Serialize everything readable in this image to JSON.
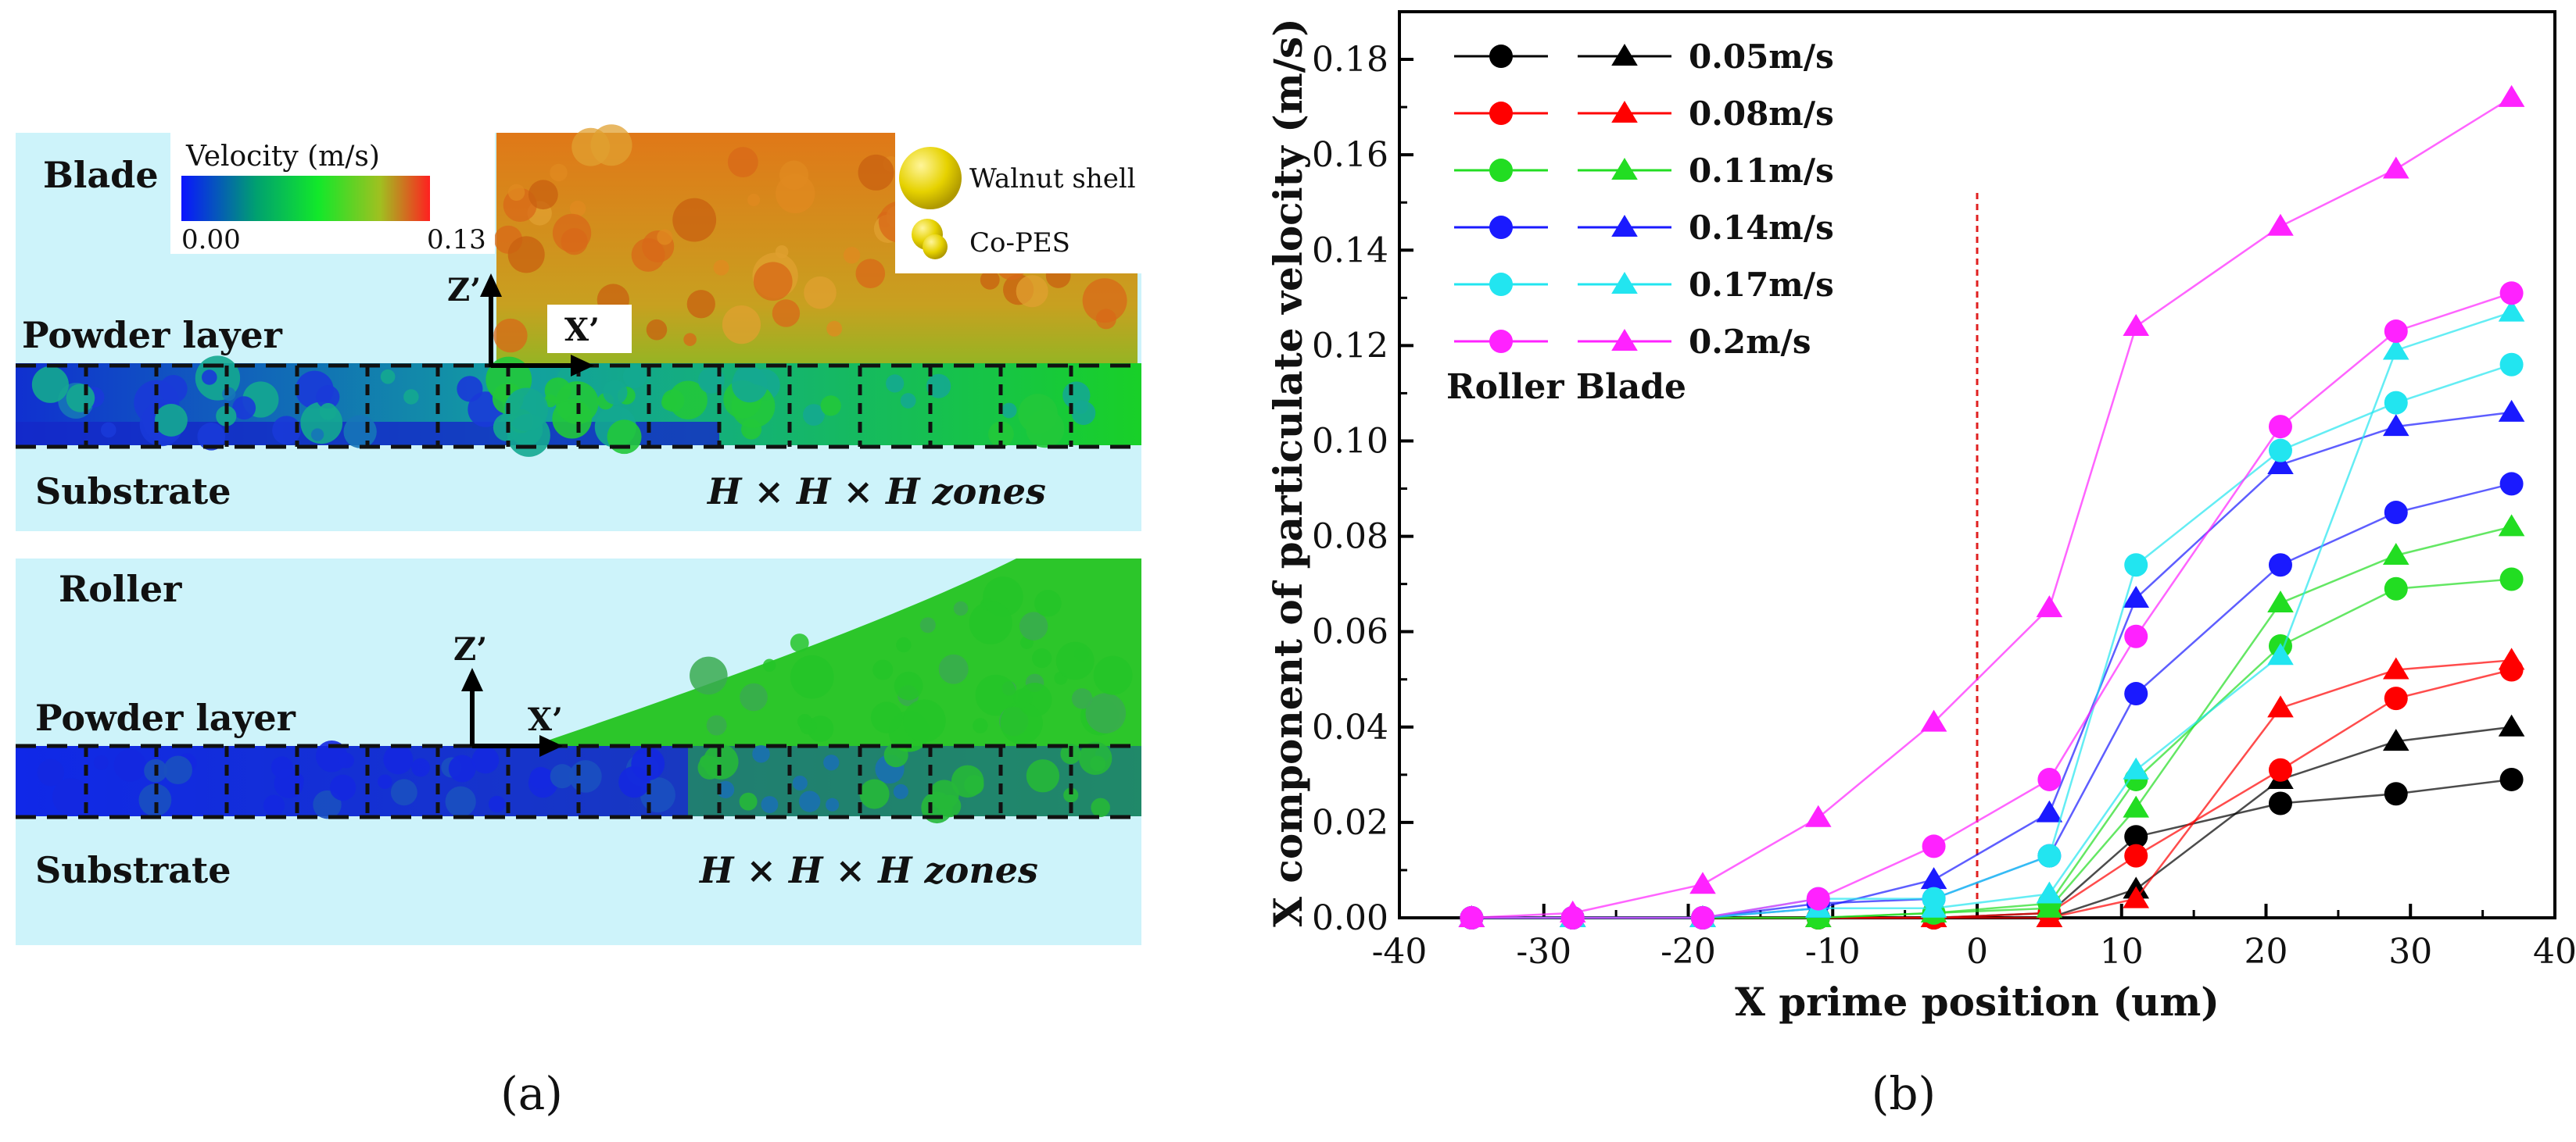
{
  "panel_a": {
    "label": "(a)",
    "legend": {
      "title": "Velocity (m/s)",
      "min_label": "0.00",
      "max_label": "0.13",
      "colors": [
        "#0a14ff",
        "#00a070",
        "#12e82a",
        "#a0c020",
        "#ff2020"
      ]
    },
    "particle_legend": {
      "walnut": "Walnut shell",
      "copes": "Co-PES"
    },
    "blade": {
      "title": "Blade",
      "layer_label": "Powder layer",
      "substrate_label": "Substrate",
      "zones_label": "H × H × H  zones",
      "axis_z": "Z’",
      "axis_x": "X’"
    },
    "roller": {
      "title": "Roller",
      "layer_label": "Powder layer",
      "substrate_label": "Substrate",
      "zones_label": "H × H × H  zones",
      "axis_z": "Z’",
      "axis_x": "X’"
    }
  },
  "panel_b": {
    "label": "(b)",
    "annotation": "Roller Blade"
  },
  "chart_data": {
    "type": "line",
    "xlabel": "X prime position (um)",
    "ylabel": "X component of particulate velocity (m/s)",
    "xlim": [
      -40,
      40
    ],
    "ylim": [
      0,
      0.19
    ],
    "xticks": [
      -40,
      -30,
      -20,
      -10,
      0,
      10,
      20,
      30,
      40
    ],
    "yticks": [
      0.0,
      0.02,
      0.04,
      0.06,
      0.08,
      0.1,
      0.12,
      0.14,
      0.16,
      0.18
    ],
    "vline_x": 0,
    "legend": [
      {
        "label": "0.05m/s",
        "color": "#000000"
      },
      {
        "label": "0.08m/s",
        "color": "#ff0000"
      },
      {
        "label": "0.11m/s",
        "color": "#22dd22"
      },
      {
        "label": "0.14m/s",
        "color": "#1a1aff"
      },
      {
        "label": "0.17m/s",
        "color": "#22e5f0"
      },
      {
        "label": "0.2m/s",
        "color": "#ff22ff"
      }
    ],
    "series": [
      {
        "name": "0.05m/s Roller",
        "marker": "circle",
        "color": "#000000",
        "x": [
          -35,
          -28,
          -19,
          -11,
          -3,
          5,
          11,
          21,
          29,
          37
        ],
        "y": [
          0,
          0,
          0,
          0,
          0,
          0.001,
          0.017,
          0.024,
          0.026,
          0.029
        ]
      },
      {
        "name": "0.05m/s Blade",
        "marker": "triangle",
        "color": "#000000",
        "x": [
          -35,
          -28,
          -19,
          -11,
          -3,
          5,
          11,
          21,
          29,
          37
        ],
        "y": [
          0,
          0,
          0,
          0,
          0,
          0,
          0.006,
          0.029,
          0.037,
          0.04
        ]
      },
      {
        "name": "0.08m/s Roller",
        "marker": "circle",
        "color": "#ff0000",
        "x": [
          -35,
          -28,
          -19,
          -11,
          -3,
          5,
          11,
          21,
          29,
          37
        ],
        "y": [
          0,
          0,
          0,
          0,
          0,
          0.001,
          0.013,
          0.031,
          0.046,
          0.052
        ]
      },
      {
        "name": "0.08m/s Blade",
        "marker": "triangle",
        "color": "#ff0000",
        "x": [
          -35,
          -28,
          -19,
          -11,
          -3,
          5,
          11,
          21,
          29,
          37
        ],
        "y": [
          0,
          0,
          0,
          0,
          0,
          0,
          0.004,
          0.044,
          0.052,
          0.054
        ]
      },
      {
        "name": "0.11m/s Roller",
        "marker": "circle",
        "color": "#22dd22",
        "x": [
          -35,
          -28,
          -19,
          -11,
          -3,
          5,
          11,
          21,
          29,
          37
        ],
        "y": [
          0,
          0,
          0,
          0,
          0.001,
          0.003,
          0.029,
          0.057,
          0.069,
          0.071
        ]
      },
      {
        "name": "0.11m/s Blade",
        "marker": "triangle",
        "color": "#22dd22",
        "x": [
          -35,
          -28,
          -19,
          -11,
          -3,
          5,
          11,
          21,
          29,
          37
        ],
        "y": [
          0,
          0,
          0,
          0,
          0.001,
          0.002,
          0.023,
          0.066,
          0.076,
          0.082
        ]
      },
      {
        "name": "0.14m/s Roller",
        "marker": "circle",
        "color": "#1a1aff",
        "x": [
          -35,
          -28,
          -19,
          -11,
          -3,
          5,
          11,
          21,
          29,
          37
        ],
        "y": [
          0,
          0,
          0,
          0.003,
          0.004,
          0.013,
          0.047,
          0.074,
          0.085,
          0.091
        ]
      },
      {
        "name": "0.14m/s Blade",
        "marker": "triangle",
        "color": "#1a1aff",
        "x": [
          -35,
          -28,
          -19,
          -11,
          -3,
          5,
          11,
          21,
          29,
          37
        ],
        "y": [
          0,
          0,
          0,
          0.002,
          0.008,
          0.022,
          0.067,
          0.095,
          0.103,
          0.106
        ]
      },
      {
        "name": "0.17m/s Roller",
        "marker": "circle",
        "color": "#22e5f0",
        "x": [
          -35,
          -28,
          -19,
          -11,
          -3,
          5,
          11,
          21,
          29,
          37
        ],
        "y": [
          0,
          0,
          0,
          0.004,
          0.004,
          0.013,
          0.074,
          0.098,
          0.108,
          0.116
        ]
      },
      {
        "name": "0.17m/s Blade",
        "marker": "triangle",
        "color": "#22e5f0",
        "x": [
          -35,
          -28,
          -19,
          -11,
          -3,
          5,
          11,
          21,
          29,
          37
        ],
        "y": [
          0,
          0,
          0,
          0.002,
          0.002,
          0.005,
          0.031,
          0.055,
          0.119,
          0.127
        ]
      },
      {
        "name": "0.2m/s Roller",
        "marker": "circle",
        "color": "#ff22ff",
        "x": [
          -35,
          -28,
          -19,
          -11,
          -3,
          5,
          11,
          21,
          29,
          37
        ],
        "y": [
          0,
          0,
          0,
          0.004,
          0.015,
          0.029,
          0.059,
          0.103,
          0.123,
          0.131
        ]
      },
      {
        "name": "0.2m/s Blade",
        "marker": "triangle",
        "color": "#ff22ff",
        "x": [
          -35,
          -28,
          -19,
          -11,
          -3,
          5,
          11,
          21,
          29,
          37
        ],
        "y": [
          0,
          0.001,
          0.007,
          0.021,
          0.041,
          0.065,
          0.124,
          0.145,
          0.157,
          0.172
        ]
      }
    ]
  }
}
